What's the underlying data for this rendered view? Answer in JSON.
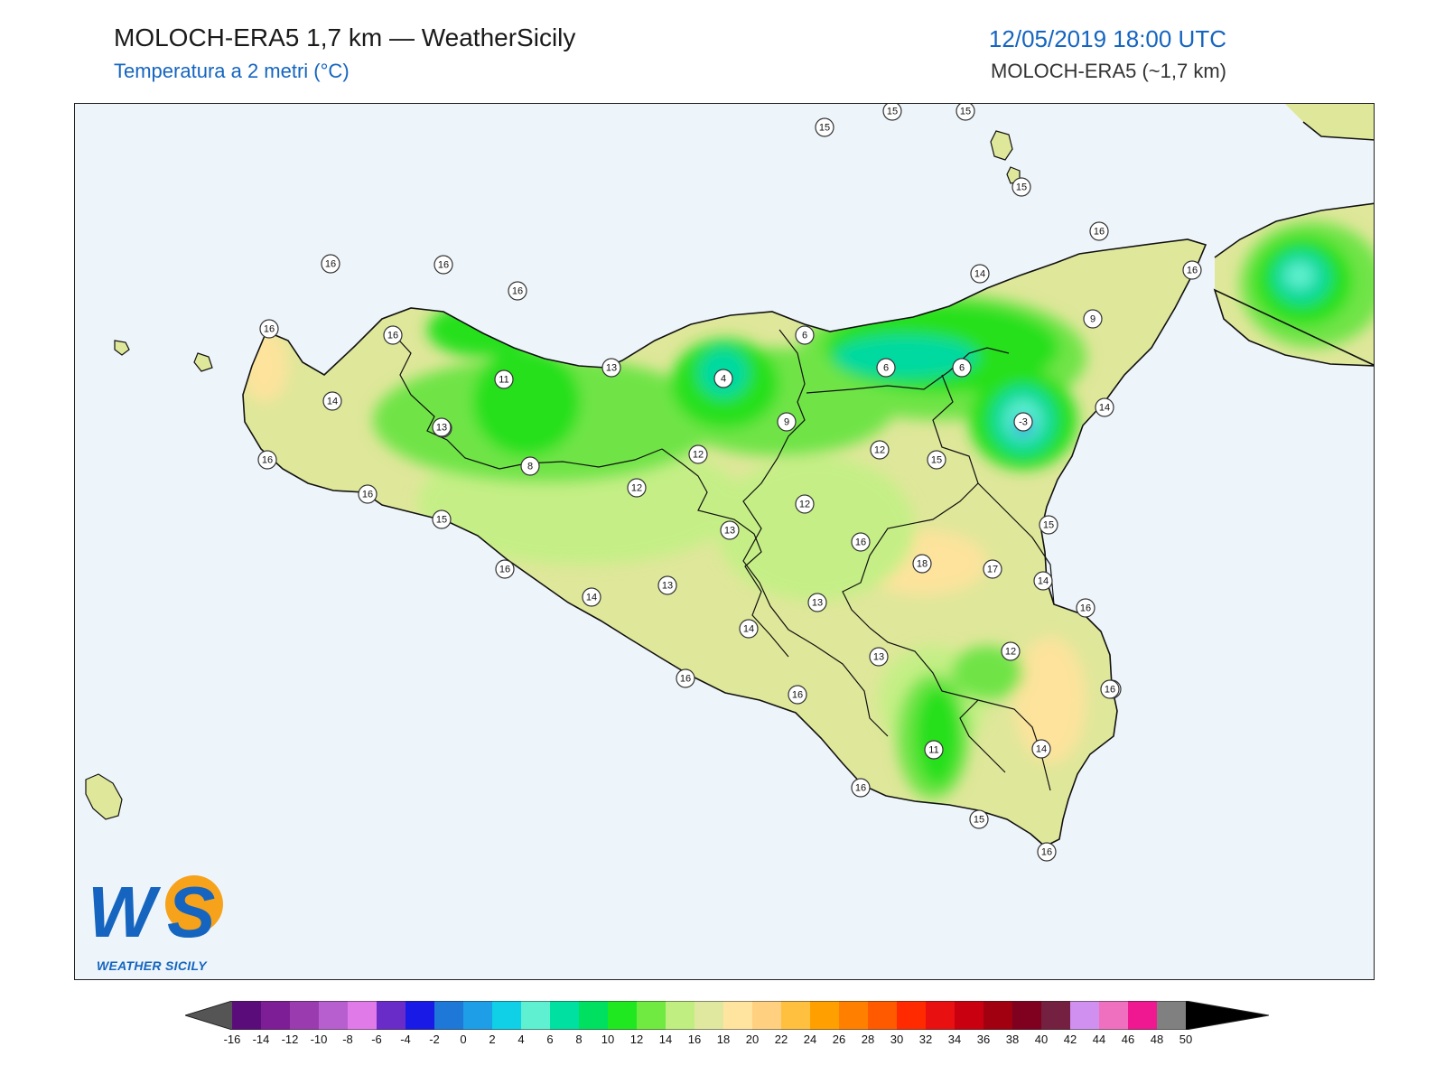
{
  "header": {
    "title": "MOLOCH-ERA5 1,7 km — WeatherSicily",
    "subtitle": "Temperatura a 2 metri (°C)",
    "datetime": "12/05/2019 18:00 UTC",
    "model": "MOLOCH-ERA5 (~1,7 km)"
  },
  "logo": {
    "name": "ws-logo",
    "text": "WEATHER SICILY",
    "mark": "WS"
  },
  "colors": {
    "sea": "#edf5fa",
    "land_base": "#dfe79a",
    "warm": "#fde39c",
    "green_light": "#c5ef86",
    "green": "#6fe446",
    "green_bright": "#27e01b",
    "teal": "#00d9a0",
    "cyan": "#5ef0d0",
    "blue": "#1565c0"
  },
  "stations": [
    {
      "v": "15"
    },
    {
      "v": "15"
    },
    {
      "v": "15"
    },
    {
      "v": "15"
    },
    {
      "v": "16"
    },
    {
      "v": "16"
    },
    {
      "v": "16"
    },
    {
      "v": "16"
    },
    {
      "v": "16"
    },
    {
      "v": "14"
    },
    {
      "v": "16"
    },
    {
      "v": "15"
    },
    {
      "v": "16"
    },
    {
      "v": "16"
    },
    {
      "v": "16"
    },
    {
      "v": "9"
    },
    {
      "v": "14"
    },
    {
      "v": "6"
    },
    {
      "v": "6"
    },
    {
      "v": "6"
    },
    {
      "v": "13"
    },
    {
      "v": "4"
    },
    {
      "v": "11"
    },
    {
      "v": "14"
    },
    {
      "v": "13"
    },
    {
      "v": "-3"
    },
    {
      "v": "14"
    },
    {
      "v": "9"
    },
    {
      "v": "12"
    },
    {
      "v": "12"
    },
    {
      "v": "15"
    },
    {
      "v": "8"
    },
    {
      "v": "12"
    },
    {
      "v": "12"
    },
    {
      "v": "16"
    },
    {
      "v": "15"
    },
    {
      "v": "13"
    },
    {
      "v": "16"
    },
    {
      "v": "15"
    },
    {
      "v": "16"
    },
    {
      "v": "18"
    },
    {
      "v": "17"
    },
    {
      "v": "16"
    },
    {
      "v": "13"
    },
    {
      "v": "14"
    },
    {
      "v": "13"
    },
    {
      "v": "14"
    },
    {
      "v": "13"
    },
    {
      "v": "12"
    },
    {
      "v": "16"
    },
    {
      "v": "16"
    },
    {
      "v": "16"
    },
    {
      "v": "11"
    },
    {
      "v": "14"
    },
    {
      "v": "16"
    },
    {
      "v": "15"
    },
    {
      "v": "16"
    }
  ],
  "colorbar": {
    "ticks": [
      "-16",
      "-14",
      "-12",
      "-10",
      "-8",
      "-6",
      "-4",
      "-2",
      "0",
      "2",
      "4",
      "6",
      "8",
      "10",
      "12",
      "14",
      "16",
      "18",
      "20",
      "22",
      "24",
      "26",
      "28",
      "30",
      "32",
      "34",
      "36",
      "38",
      "40",
      "42",
      "44",
      "46",
      "48",
      "50"
    ],
    "colors": [
      "#3a0040",
      "#5a0d7a",
      "#7d1e96",
      "#9a3cb0",
      "#b85fd0",
      "#e07ae8",
      "#6a2cc8",
      "#1a1ae6",
      "#1e78d8",
      "#1e9ee6",
      "#0fd0e6",
      "#5ef0d0",
      "#00e0a0",
      "#00e060",
      "#20e820",
      "#70ea40",
      "#c0ee80",
      "#e0e8a0",
      "#ffe4a0",
      "#ffd080",
      "#ffc040",
      "#ffa000",
      "#ff8000",
      "#ff5a00",
      "#ff2a00",
      "#e81010",
      "#c80010",
      "#a00010",
      "#800020",
      "#742040",
      "#d090f0",
      "#f070c0",
      "#f01890",
      "#808080",
      "#383838"
    ]
  }
}
